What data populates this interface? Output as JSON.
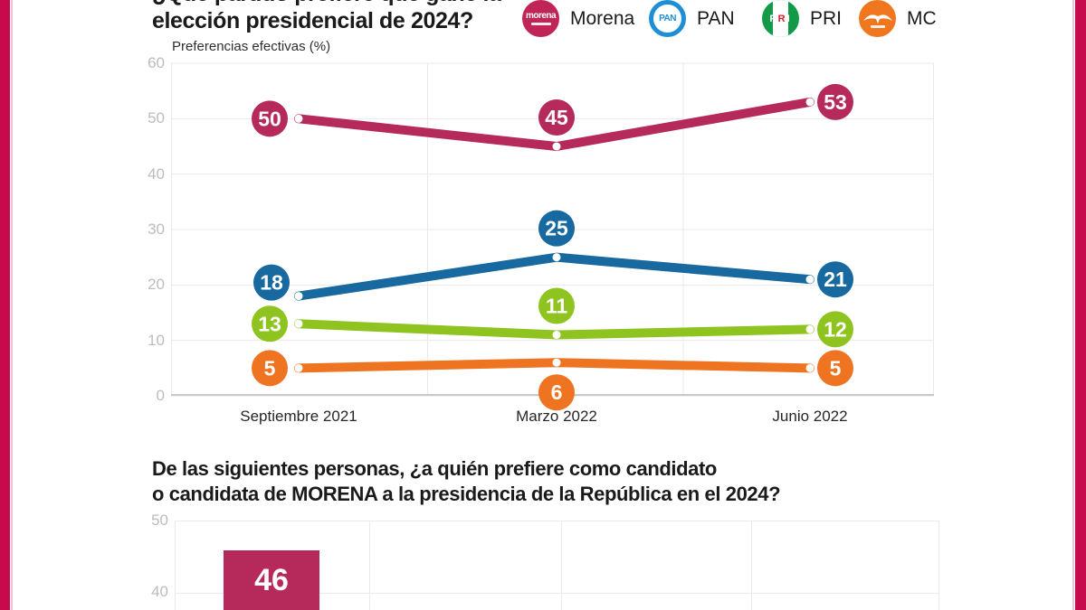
{
  "page": {
    "background": "#FFFFFF",
    "side_accent_color": "#C70A4C",
    "side_accent_thin_color": "#DE8FA9"
  },
  "question1": {
    "line1_partial": "¿Qué partido prefiere que gane la",
    "line2": "elección presidencial de 2024?"
  },
  "legend": {
    "items": [
      {
        "id": "morena",
        "label": "Morena",
        "color": "#C02558",
        "logo_text": "morena"
      },
      {
        "id": "pan",
        "label": "PAN",
        "color": "#1E8FD5",
        "logo_text": "PAN"
      },
      {
        "id": "pri",
        "label": "PRI",
        "color": "#129A48",
        "logo_text_p": "P",
        "logo_text_r": "R",
        "logo_text_i": "I"
      },
      {
        "id": "mc",
        "label": "MC",
        "color": "#F1771F"
      }
    ]
  },
  "chart_data": [
    {
      "type": "line",
      "title": "Preferencias efectivas (%)",
      "categories": [
        "Septiembre 2021",
        "Marzo 2022",
        "Junio 2022"
      ],
      "series": [
        {
          "name": "Morena",
          "color": "#B5295B",
          "values": [
            50,
            45,
            53
          ],
          "label_placement": [
            "left",
            "above",
            "right"
          ]
        },
        {
          "name": "PAN",
          "color": "#17699F",
          "values": [
            18,
            25,
            21
          ],
          "label_placement": [
            "above-left",
            "above",
            "right"
          ]
        },
        {
          "name": "PRI",
          "color": "#8FC31F",
          "values": [
            13,
            11,
            12
          ],
          "label_placement": [
            "left",
            "above",
            "right"
          ]
        },
        {
          "name": "MC",
          "color": "#EE7421",
          "values": [
            5,
            6,
            5
          ],
          "label_placement": [
            "left",
            "below",
            "right"
          ]
        }
      ],
      "ylim": [
        0,
        60
      ],
      "yticks": [
        60,
        50,
        40,
        30,
        20,
        10,
        0
      ],
      "grid": true,
      "legend_position": "top-right",
      "marker": "white-dot",
      "value_labels": "colored-circles"
    },
    {
      "type": "bar",
      "title": "De las siguientes personas, ¿a quién prefiere como candidato o candidata de MORENA a la presidencia de la República en el 2024?",
      "values_visible": [
        46
      ],
      "bar_color": "#B5295B",
      "yticks_visible": [
        50,
        40
      ],
      "ylim_visible": [
        40,
        50
      ],
      "grid": true,
      "cropped_at_bottom": true
    }
  ],
  "question2": {
    "line1": "De las siguientes personas, ¿a quién prefiere como candidato",
    "line2": "o candidata de MORENA a la presidencia de la República en el 2024?"
  }
}
